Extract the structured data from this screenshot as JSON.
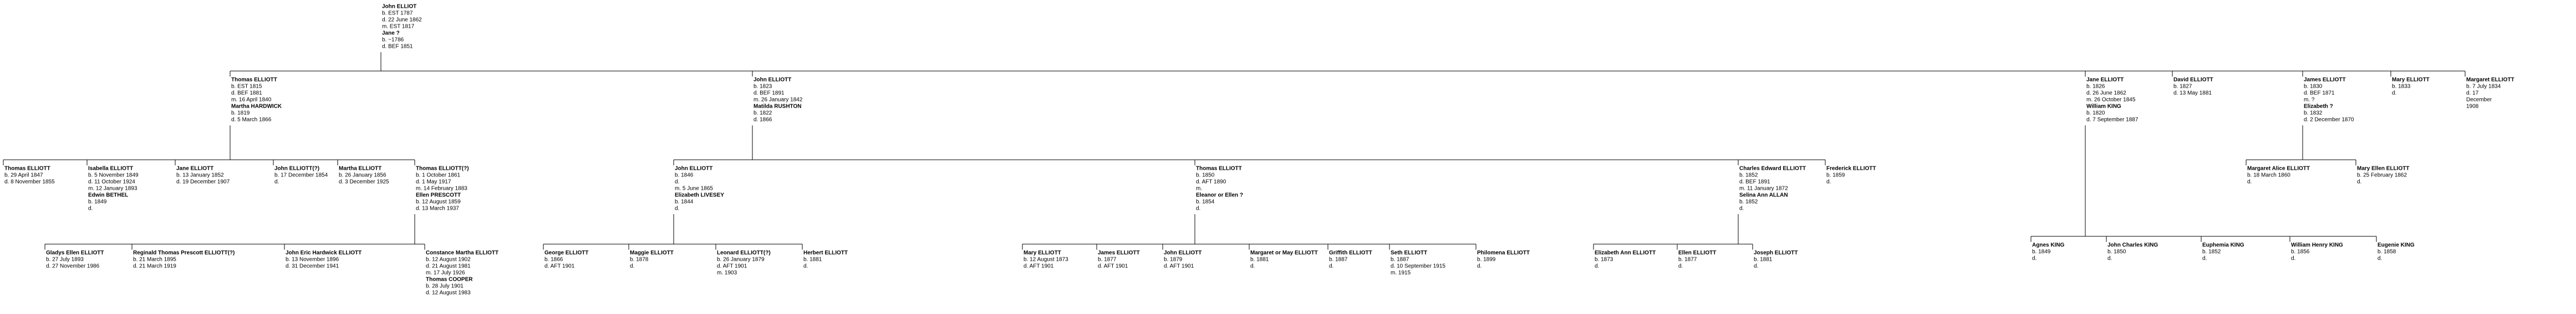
{
  "tree": {
    "name": "John ELLIOT",
    "details": [
      "b. EST 1787",
      "d. 22 June 1862",
      "m. EST 1817"
    ],
    "spouse": "Jane ?",
    "spouse_details": [
      "b. ~1786",
      "d. BEF 1851"
    ],
    "children": [
      {
        "name": "Thomas ELLIOTT",
        "details": [
          "b. EST 1815",
          "d. BEF 1881",
          "m. 16 April 1840"
        ],
        "spouse": "Martha HARDWICK",
        "spouse_details": [
          "b. 1819",
          "d. 5 March 1866"
        ],
        "children": [
          {
            "name": "Thomas ELLIOTT",
            "details": [
              "b. 29 April 1847",
              "d. 8 November 1855"
            ]
          },
          {
            "name": "Isabella ELLIOTT",
            "details": [
              "b. 5 November 1849",
              "d. 11 October 1924",
              "m. 12 January 1893"
            ],
            "spouse": "Edwin BETHEL",
            "spouse_details": [
              "b. 1849",
              "d."
            ]
          },
          {
            "name": "Jane ELLIOTT",
            "details": [
              "b. 13 January 1852",
              "d. 19 December 1907"
            ]
          },
          {
            "name": "John ELLIOTT(?)",
            "details": [
              "b. 17 December 1854",
              "d."
            ]
          },
          {
            "name": "Martha ELLIOTT",
            "details": [
              "b. 26 January 1856",
              "d. 3 December 1925"
            ]
          },
          {
            "name": "Thomas ELLIOTT(?)",
            "details": [
              "b. 1 October 1861",
              "d. 1 May 1917",
              "m. 14 February 1883"
            ],
            "spouse": "Ellen PRESCOTT",
            "spouse_details": [
              "b. 12 August 1859",
              "d. 13 March 1937"
            ],
            "children": [
              {
                "name": "Gladys Ellen ELLIOTT",
                "details": [
                  "b. 27 July 1893",
                  "d. 27 November 1986"
                ]
              },
              {
                "name": "Reginald Thomas Prescott ELLIOTT(?)",
                "details": [
                  "b. 21 March 1895",
                  "d. 21 March 1919"
                ]
              },
              {
                "name": "John Eric Hardwick ELLIOTT",
                "details": [
                  "b. 13 November 1896",
                  "d. 31 December 1941"
                ]
              },
              {
                "name": "Constance Martha ELLIOTT",
                "details": [
                  "b. 12 August 1902",
                  "d. 21 August 1981",
                  "m. 17 July 1926"
                ],
                "spouse": "Thomas COOPER",
                "spouse_details": [
                  "b. 28 July 1901",
                  "d. 12 August 1983"
                ]
              }
            ]
          }
        ]
      },
      {
        "name": "John ELLIOTT",
        "details": [
          "b. 1823",
          "d. BEF 1891",
          "m. 26 January 1842"
        ],
        "spouse": "Matilda RUSHTON",
        "spouse_details": [
          "b. 1822",
          "d. 1866"
        ],
        "children": [
          {
            "name": "John ELLIOTT",
            "details": [
              "b. 1846",
              "d.",
              "m. 5 June 1865"
            ],
            "spouse": "Elizabeth LIVESEY",
            "spouse_details": [
              "b. 1844",
              "d."
            ],
            "children": [
              {
                "name": "George ELLIOTT",
                "details": [
                  "b. 1866",
                  "d. AFT 1901"
                ]
              },
              {
                "name": "Maggie ELLIOTT",
                "details": [
                  "b. 1878",
                  "d."
                ]
              },
              {
                "name": "Leonard ELLIOTT(?)",
                "details": [
                  "b. 26 January 1879",
                  "d. AFT 1901",
                  "m. 1903"
                ]
              },
              {
                "name": "Herbert ELLIOTT",
                "details": [
                  "b. 1881",
                  "d."
                ]
              }
            ]
          },
          {
            "name": "Thomas ELLIOTT",
            "details": [
              "b. 1850",
              "d. AFT 1890",
              "m."
            ],
            "spouse": "Eleanor or Ellen ?",
            "spouse_details": [
              "b. 1854",
              "d."
            ],
            "children": [
              {
                "name": "Mary ELLIOTT",
                "details": [
                  "b. 12 August 1873",
                  "d. AFT 1901"
                ]
              },
              {
                "name": "James ELLIOTT",
                "details": [
                  "b. 1877",
                  "d. AFT 1901"
                ]
              },
              {
                "name": "John ELLIOTT",
                "details": [
                  "b. 1879",
                  "d. AFT 1901"
                ]
              },
              {
                "name": "Margaret or May ELLIOTT",
                "details": [
                  "b. 1881",
                  "d."
                ]
              },
              {
                "name": "Griffith ELLIOTT",
                "details": [
                  "b. 1887",
                  "d."
                ]
              },
              {
                "name": "Seth ELLIOTT",
                "details": [
                  "b. 1887",
                  "d. 10 September 1915",
                  "m. 1915"
                ]
              },
              {
                "name": "Philomena ELLIOTT",
                "details": [
                  "b. 1899",
                  "d."
                ]
              }
            ]
          },
          {
            "name": "Charles Edward ELLIOTT",
            "details": [
              "b. 1852",
              "d. BEF 1891",
              "m. 11 January 1872"
            ],
            "spouse": "Selina Ann ALLAN",
            "spouse_details": [
              "b. 1852",
              "d."
            ],
            "children": [
              {
                "name": "Elizabeth Ann ELLIOTT",
                "details": [
                  "b. 1873",
                  "d."
                ]
              },
              {
                "name": "Ellen ELLIOTT",
                "details": [
                  "b. 1877",
                  "d."
                ]
              },
              {
                "name": "Joseph ELLIOTT",
                "details": [
                  "b. 1881",
                  "d."
                ]
              }
            ]
          },
          {
            "name": "Frederick ELLIOTT",
            "details": [
              "b. 1859",
              "d."
            ]
          }
        ]
      },
      {
        "name": "Jane ELLIOTT",
        "details": [
          "b. 1826",
          "d. 26 June 1862",
          "m. 26 October 1845"
        ],
        "spouse": "William KING",
        "spouse_details": [
          "b. 1820",
          "d. 7 September 1887"
        ],
        "children": [
          {
            "name": "Agnes KING",
            "details": [
              "b. 1849",
              "d."
            ]
          },
          {
            "name": "John Charles KING",
            "details": [
              "b. 1850",
              "d."
            ]
          },
          {
            "name": "Euphemia KING",
            "details": [
              "b. 1852",
              "d."
            ]
          },
          {
            "name": "William Henry KING",
            "details": [
              "b. 1856",
              "d."
            ]
          },
          {
            "name": "Eugenie KING",
            "details": [
              "b. 1858",
              "d."
            ]
          }
        ]
      },
      {
        "name": "David ELLIOTT",
        "details": [
          "b. 1827",
          "d. 13 May 1881"
        ]
      },
      {
        "name": "James ELLIOTT",
        "details": [
          "b. 1830",
          "d. BEF 1871",
          "m. ?"
        ],
        "spouse": "Elizabeth ?",
        "spouse_details": [
          "b. 1832",
          "d. 2 December 1870"
        ],
        "children": [
          {
            "name": "Margaret Alice ELLIOTT",
            "details": [
              "b. 18 March 1860",
              "d."
            ]
          },
          {
            "name": "Mary Ellen ELLIOTT",
            "details": [
              "b. 25 February 1862",
              "d."
            ]
          }
        ]
      },
      {
        "name": "Mary ELLIOTT",
        "details": [
          "b. 1833",
          "d."
        ]
      },
      {
        "name": "Margaret ELLIOTT",
        "details": [
          "b. 7 July 1834",
          "d. 17",
          "December",
          "1908"
        ]
      }
    ]
  }
}
